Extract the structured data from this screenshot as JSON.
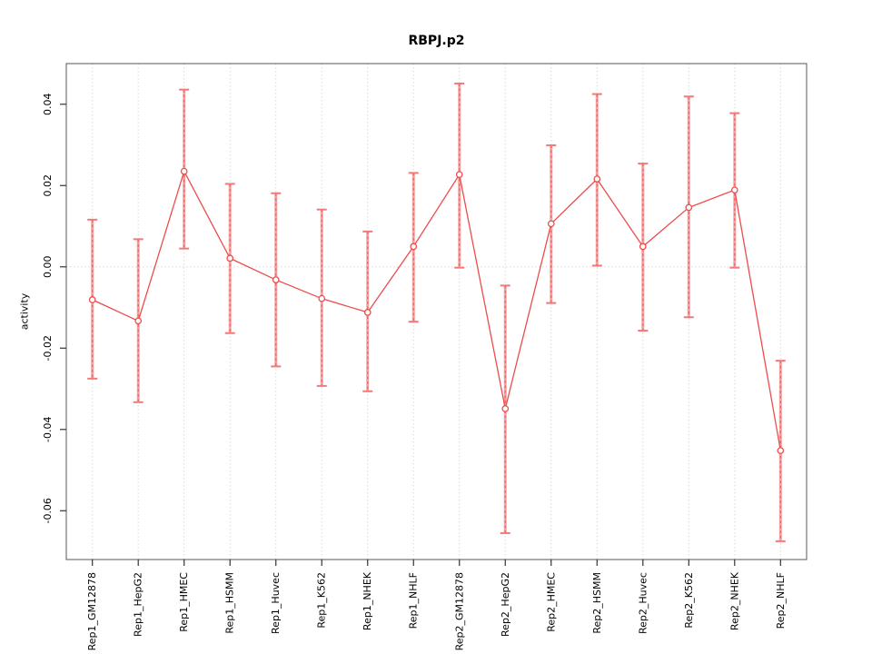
{
  "chart_data": {
    "type": "line",
    "title": "RBPJ.p2",
    "xlabel": "",
    "ylabel": "activity",
    "categories": [
      "Rep1_GM12878",
      "Rep1_HepG2",
      "Rep1_HMEC",
      "Rep1_HSMM",
      "Rep1_Huvec",
      "Rep1_K562",
      "Rep1_NHEK",
      "Rep1_NHLF",
      "Rep2_GM12878",
      "Rep2_HepG2",
      "Rep2_HMEC",
      "Rep2_HSMM",
      "Rep2_Huvec",
      "Rep2_K562",
      "Rep2_NHEK",
      "Rep2_NHLF"
    ],
    "series": [
      {
        "name": "activity",
        "values": [
          -0.0081,
          -0.0133,
          0.0235,
          0.0021,
          -0.0032,
          -0.0078,
          -0.0112,
          0.005,
          0.0227,
          -0.0349,
          0.0106,
          0.0216,
          0.005,
          0.0146,
          0.0189,
          -0.0452
        ]
      }
    ],
    "error_bars": {
      "lower": [
        -0.0275,
        -0.0333,
        0.0045,
        -0.0163,
        -0.0245,
        -0.0293,
        -0.0306,
        -0.0135,
        -0.0002,
        -0.0655,
        -0.0089,
        0.0003,
        -0.0157,
        -0.0124,
        -0.0002,
        -0.0675
      ],
      "upper": [
        0.0116,
        0.0068,
        0.0436,
        0.0204,
        0.0181,
        0.0141,
        0.0087,
        0.0231,
        0.0451,
        -0.0046,
        0.0299,
        0.0425,
        0.0254,
        0.0419,
        0.0378,
        -0.0231
      ]
    },
    "yticks": [
      "0.04",
      "0.02",
      "0.00",
      "-0.02",
      "-0.04",
      "-0.06"
    ],
    "ytick_values": [
      0.04,
      0.02,
      0.0,
      -0.02,
      -0.04,
      -0.06
    ],
    "ylim": [
      -0.072,
      0.05
    ],
    "zero_reference_line": true,
    "grid": "vertical dotted gridline at each category; dotted horizontal line at y=0",
    "legend_position": "none",
    "marker": "open-circle",
    "colors": {
      "line": "#ee4b4b",
      "marker_stroke": "#ee4b4b",
      "marker_fill": "#ffffff",
      "error_bar_solid": "#f5a3a3",
      "error_bar_dashed": "#ef5b5b",
      "error_bar_cap": "#f27979",
      "grid": "#d9d9d9",
      "axis_box": "#666666",
      "tick": "#333333",
      "text": "#000000",
      "background": "#ffffff"
    }
  }
}
